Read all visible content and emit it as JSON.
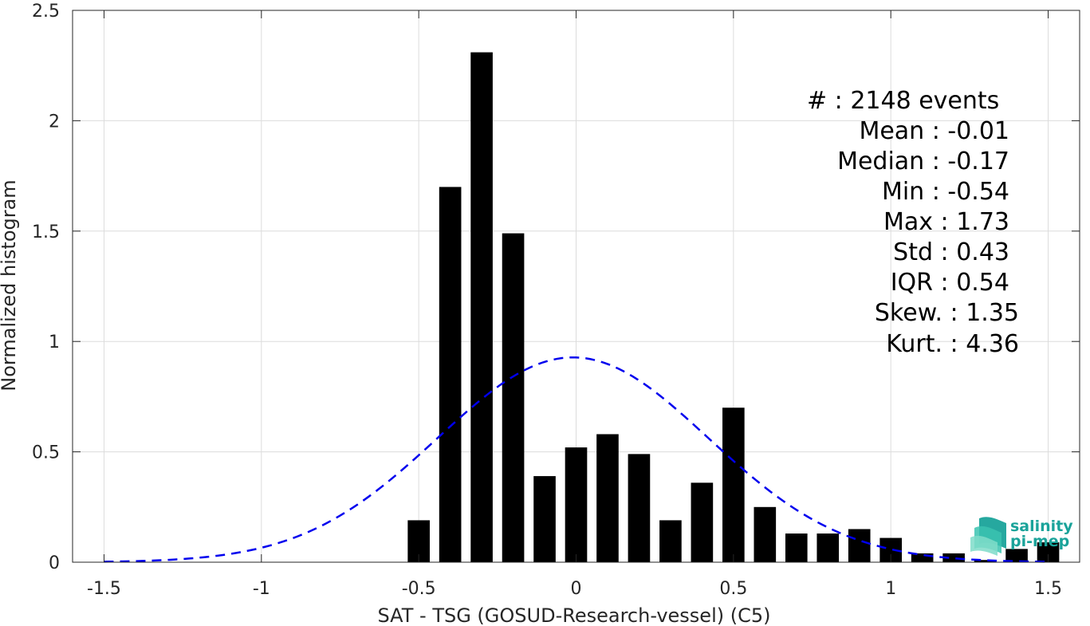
{
  "chart_data": {
    "type": "bar",
    "title": "",
    "xlabel": "SAT - TSG (GOSUD-Research-vessel) (C5)",
    "ylabel": "Normalized histogram",
    "xlim": [
      -1.6,
      1.6
    ],
    "ylim": [
      0,
      2.5
    ],
    "grid": true,
    "x_ticks": [
      -1.5,
      -1,
      -0.5,
      0,
      0.5,
      1,
      1.5
    ],
    "x_tick_labels": [
      "-1.5",
      "-1",
      "-0.5",
      "0",
      "0.5",
      "1",
      "1.5"
    ],
    "y_ticks": [
      0,
      0.5,
      1,
      1.5,
      2,
      2.5
    ],
    "y_tick_labels": [
      "0",
      "0.5",
      "1",
      "1.5",
      "2",
      "2.5"
    ],
    "bin_width": 0.1,
    "bar_fraction": 0.7,
    "bar_color": "#000000",
    "bars": [
      {
        "x": -0.5,
        "y": 0.19
      },
      {
        "x": -0.4,
        "y": 1.7
      },
      {
        "x": -0.3,
        "y": 2.31
      },
      {
        "x": -0.2,
        "y": 1.49
      },
      {
        "x": -0.1,
        "y": 0.39
      },
      {
        "x": 0.0,
        "y": 0.52
      },
      {
        "x": 0.1,
        "y": 0.58
      },
      {
        "x": 0.2,
        "y": 0.49
      },
      {
        "x": 0.3,
        "y": 0.19
      },
      {
        "x": 0.4,
        "y": 0.36
      },
      {
        "x": 0.5,
        "y": 0.7
      },
      {
        "x": 0.6,
        "y": 0.25
      },
      {
        "x": 0.7,
        "y": 0.13
      },
      {
        "x": 0.8,
        "y": 0.13
      },
      {
        "x": 0.9,
        "y": 0.15
      },
      {
        "x": 1.0,
        "y": 0.11
      },
      {
        "x": 1.1,
        "y": 0.04
      },
      {
        "x": 1.2,
        "y": 0.04
      },
      {
        "x": 1.3,
        "y": 0.01
      },
      {
        "x": 1.4,
        "y": 0.06
      },
      {
        "x": 1.5,
        "y": 0.09
      }
    ],
    "fit_curve": {
      "type": "gaussian",
      "mean": -0.01,
      "std": 0.43,
      "color": "#0000ee",
      "style": "dashed",
      "x_range": [
        -1.5,
        1.5
      ]
    },
    "stats": [
      "#  : 2148 events",
      "Mean : -0.01",
      "Median : -0.17",
      "Min : -0.54",
      "Max : 1.73",
      "Std : 0.43",
      "IQR : 0.54",
      "Skew. : 1.35",
      "Kurt. : 4.36"
    ]
  },
  "logo": {
    "line1": "salinity",
    "line2": "pi-mep",
    "color": "#1aa39a"
  }
}
